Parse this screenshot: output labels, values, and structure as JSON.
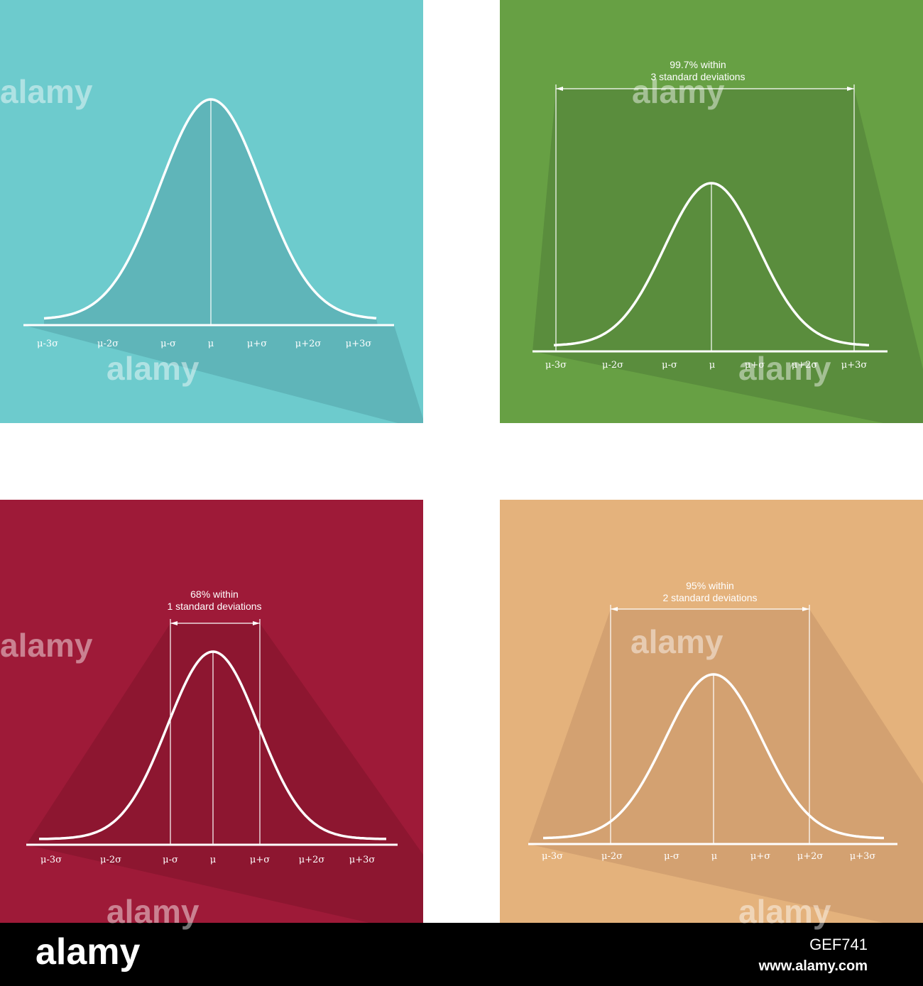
{
  "panels": [
    {
      "tick_labels": [
        "μ-3σ",
        "μ-2σ",
        "μ-σ",
        "μ",
        "μ+σ",
        "μ+2σ",
        "μ+3σ"
      ]
    },
    {
      "tick_labels": [
        "μ-3σ",
        "μ-2σ",
        "μ-σ",
        "μ",
        "μ+σ",
        "μ+2σ",
        "μ+3σ"
      ],
      "annotation": [
        "99.7% within",
        "3 standard deviations"
      ]
    },
    {
      "tick_labels": [
        "μ-3σ",
        "μ-2σ",
        "μ-σ",
        "μ",
        "μ+σ",
        "μ+2σ",
        "μ+3σ"
      ],
      "annotation": [
        "68% within",
        "1 standard deviations"
      ]
    },
    {
      "tick_labels": [
        "μ-3σ",
        "μ-2σ",
        "μ-σ",
        "μ",
        "μ+σ",
        "μ+2σ",
        "μ+3σ"
      ],
      "annotation": [
        "95% within",
        "2 standard deviations"
      ]
    }
  ],
  "watermark": "alamy",
  "footer": {
    "logo": "alamy",
    "image_id": "GEF741",
    "url": "www.alamy.com"
  }
}
